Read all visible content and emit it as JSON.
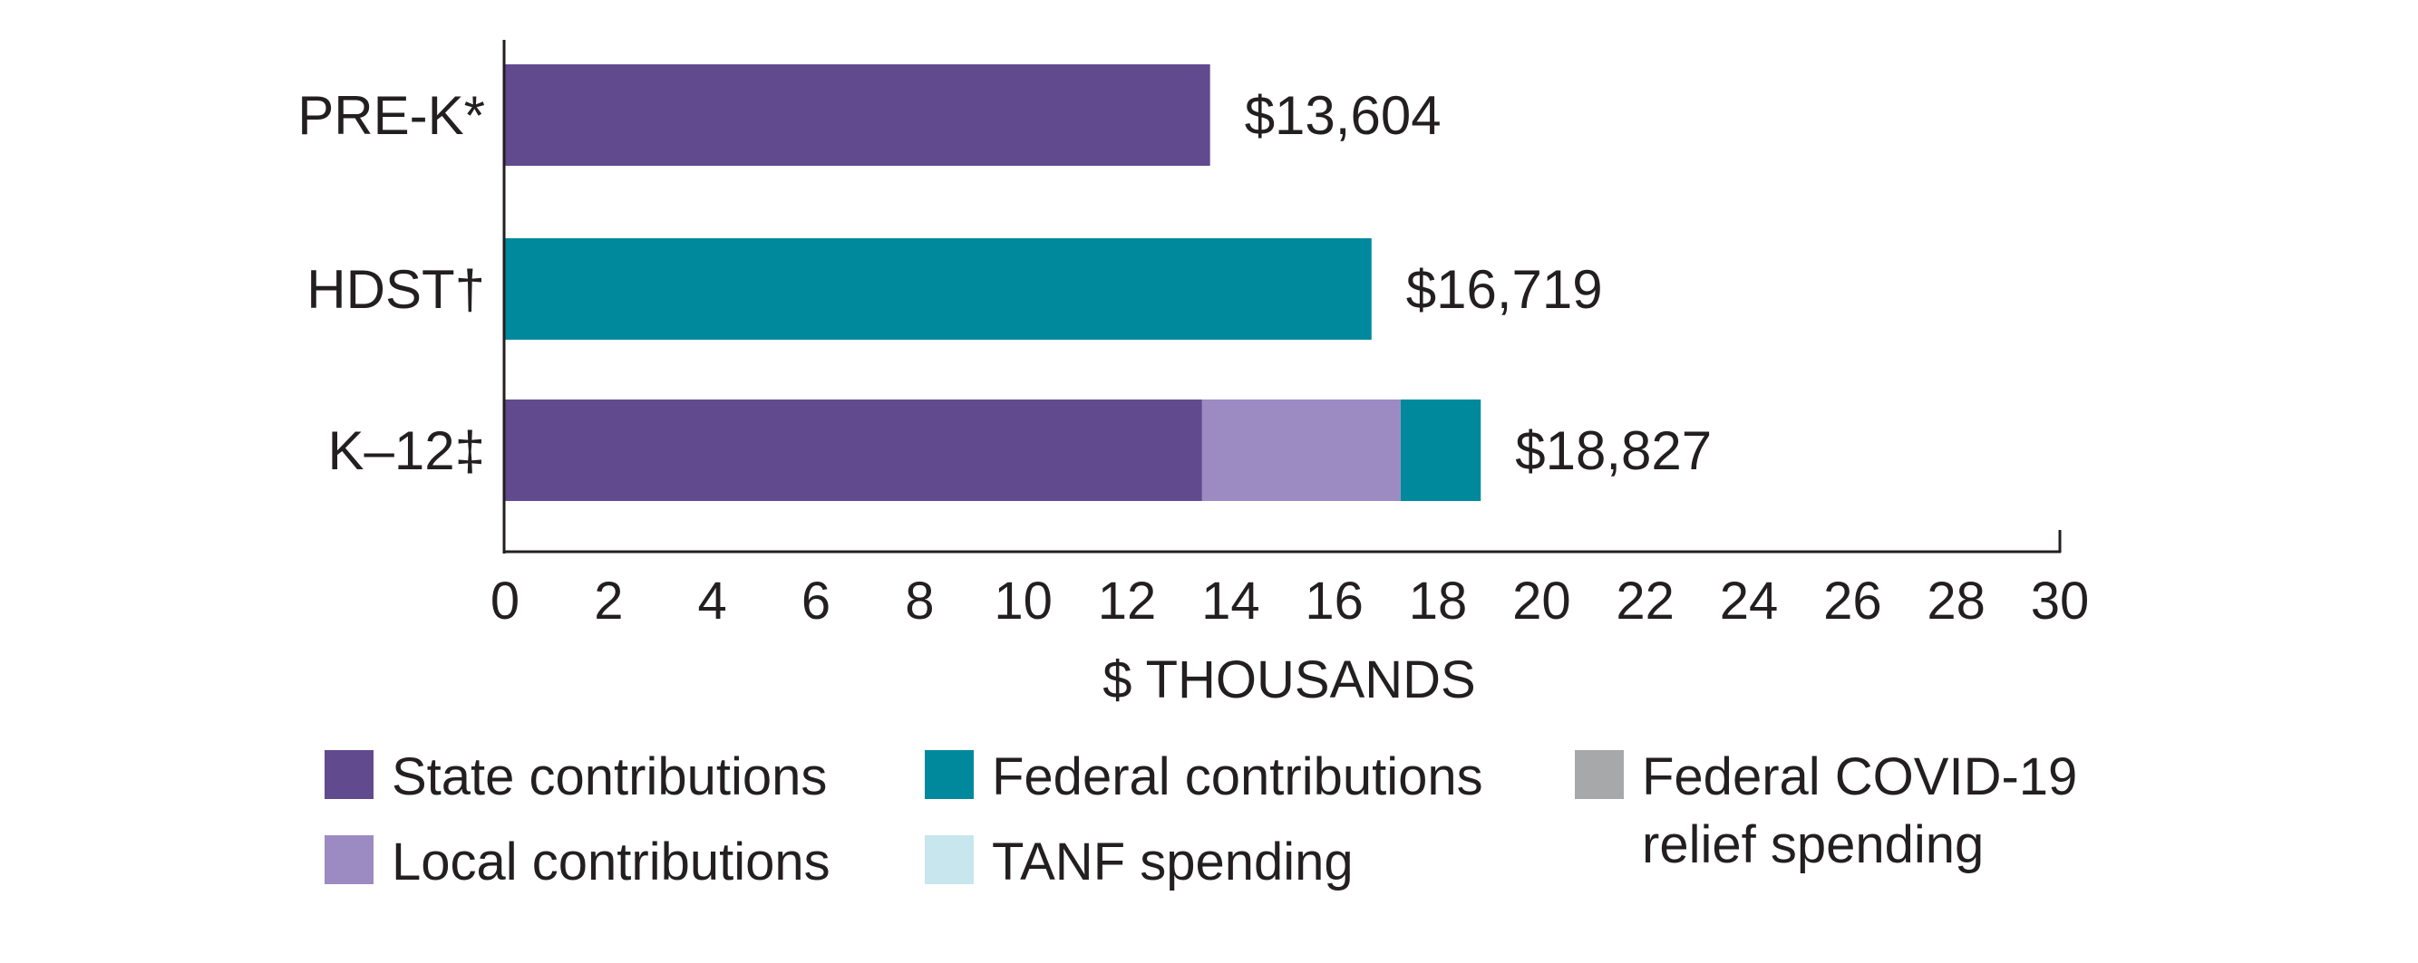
{
  "chart_data": {
    "type": "bar",
    "orientation": "horizontal",
    "stacked": true,
    "title": "",
    "xlabel": "$ THOUSANDS",
    "ylabel": "",
    "xlim": [
      0,
      30
    ],
    "xticks": [
      0,
      2,
      4,
      6,
      8,
      10,
      12,
      14,
      16,
      18,
      20,
      22,
      24,
      26,
      28,
      30
    ],
    "grid": false,
    "categories": [
      "PRE-K*",
      "HDST†",
      "K–12‡"
    ],
    "series": [
      {
        "name": "State contributions",
        "color": "#624a8f",
        "values": [
          13.604,
          0,
          13.45
        ]
      },
      {
        "name": "Local contributions",
        "color": "#9b8bc2",
        "values": [
          0,
          0,
          3.83
        ]
      },
      {
        "name": "Federal contributions",
        "color": "#00899c",
        "values": [
          0,
          16.719,
          1.547
        ]
      },
      {
        "name": "TANF spending",
        "color": "#c7e6ee",
        "values": [
          0,
          0,
          0
        ]
      },
      {
        "name": "Federal COVID-19 relief spending",
        "color": "#a7a8aa",
        "values": [
          0,
          0,
          0
        ]
      }
    ],
    "totals": [
      13.604,
      16.719,
      18.827
    ],
    "total_labels": [
      "$13,604",
      "$16,719",
      "$18,827"
    ],
    "legend": {
      "placement": "bottom",
      "columns": [
        [
          {
            "label": "State contributions",
            "color": "#624a8f"
          },
          {
            "label": "Local contributions",
            "color": "#9b8bc2"
          }
        ],
        [
          {
            "label": "Federal contributions",
            "color": "#00899c"
          },
          {
            "label": "TANF spending",
            "color": "#c7e6ee"
          }
        ],
        [
          {
            "label_lines": [
              "Federal COVID-19",
              "relief spending"
            ],
            "color": "#a7a8aa"
          }
        ]
      ]
    }
  }
}
